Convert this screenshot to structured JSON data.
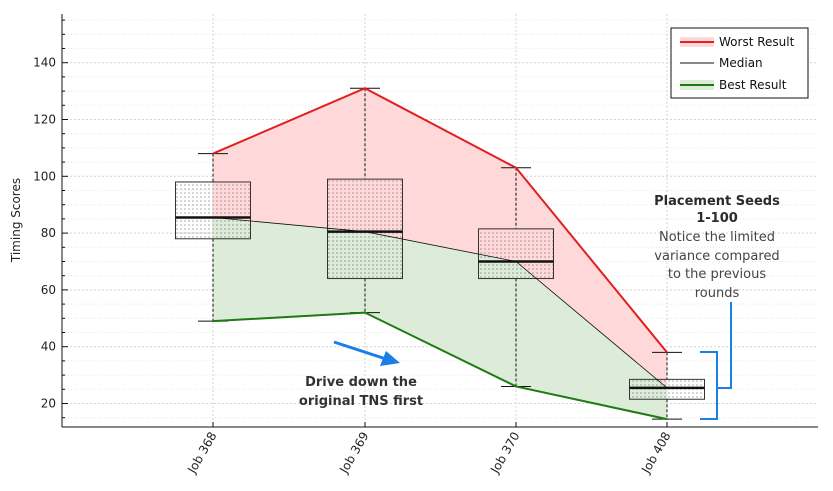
{
  "chart_data": {
    "type": "box",
    "ylabel": "Timing Scores",
    "ylim": [
      12,
      157
    ],
    "yticks": [
      20,
      40,
      60,
      80,
      100,
      120,
      140
    ],
    "categories": [
      "Job 368",
      "Job 369",
      "Job 370",
      "Job 408"
    ],
    "boxes": [
      {
        "min": 49,
        "q1": 78,
        "median": 85.5,
        "q3": 98,
        "max": 108
      },
      {
        "min": 52,
        "q1": 64,
        "median": 80.5,
        "q3": 99,
        "max": 131
      },
      {
        "min": 26,
        "q1": 64,
        "median": 70,
        "q3": 81.5,
        "max": 103
      },
      {
        "min": 14.5,
        "q1": 21.5,
        "median": 25.5,
        "q3": 28.5,
        "max": 38
      }
    ],
    "series": [
      {
        "name": "Worst Result",
        "values": [
          108,
          131,
          103,
          38
        ],
        "color": "#e02020"
      },
      {
        "name": "Median",
        "values": [
          85.5,
          80.5,
          70,
          25.5
        ],
        "color": "#111111"
      },
      {
        "name": "Best Result",
        "values": [
          49,
          52,
          26,
          14.5
        ],
        "color": "#1f7a12"
      }
    ],
    "fill_colors": {
      "worst": "#ffd9d9",
      "best": "#dcecd9"
    },
    "grid": true,
    "legend_position": "top-right",
    "annotations": {
      "seeds_title_1": "Placement Seeds",
      "seeds_title_2": "1-100",
      "seeds_lines": [
        "Notice the limited",
        "variance compared",
        "to the previous",
        "rounds"
      ],
      "drive_lines": [
        "Drive down the",
        "original TNS first"
      ],
      "accent_color": "#1a7fe6"
    }
  }
}
